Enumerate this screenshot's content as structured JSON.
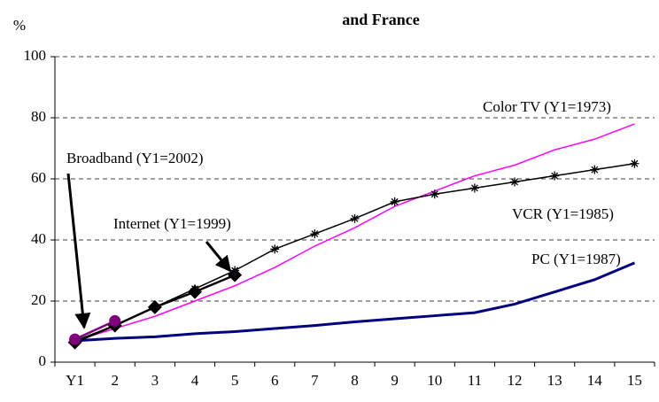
{
  "chart_data": {
    "type": "line",
    "title": "and France",
    "y_label": "%",
    "categories": [
      "Y1",
      "2",
      "3",
      "4",
      "5",
      "6",
      "7",
      "8",
      "9",
      "10",
      "11",
      "12",
      "13",
      "14",
      "15"
    ],
    "series": [
      {
        "name": "Color TV (Y1=1973)",
        "color": "#ff00ff",
        "marker": "none",
        "width": 1.5,
        "values": [
          7,
          11,
          15,
          20,
          25,
          31,
          38,
          44,
          51,
          56,
          61,
          64.5,
          69.5,
          73,
          78
        ]
      },
      {
        "name": "VCR (Y1=1985)",
        "color": "#000000",
        "marker": "asterisk",
        "width": 1.5,
        "values": [
          7,
          12,
          18,
          24,
          30,
          37,
          42,
          47,
          52.5,
          55,
          57,
          59,
          61,
          63,
          65
        ]
      },
      {
        "name": "PC (Y1=1987)",
        "color": "#000080",
        "marker": "none",
        "width": 3,
        "values": [
          7,
          7.8,
          8.3,
          9.3,
          10,
          11,
          12,
          13.2,
          14.2,
          15.2,
          16.2,
          19,
          23,
          27,
          32.5
        ]
      },
      {
        "name": "Internet  (Y1=1999)",
        "color": "#000000",
        "marker": "diamond",
        "width": 2.5,
        "values": [
          6.5,
          12,
          18,
          23,
          28.5,
          null,
          null,
          null,
          null,
          null,
          null,
          null,
          null,
          null,
          null
        ]
      },
      {
        "name": "Broadband (Y1=2002)",
        "color": "#800080",
        "marker": "circle",
        "width": 2.5,
        "values": [
          7.5,
          13.5,
          null,
          null,
          null,
          null,
          null,
          null,
          null,
          null,
          null,
          null,
          null,
          null,
          null
        ]
      }
    ],
    "ylim": [
      0,
      100
    ],
    "yticks": [
      0,
      20,
      40,
      60,
      80,
      100
    ],
    "grid": true
  }
}
